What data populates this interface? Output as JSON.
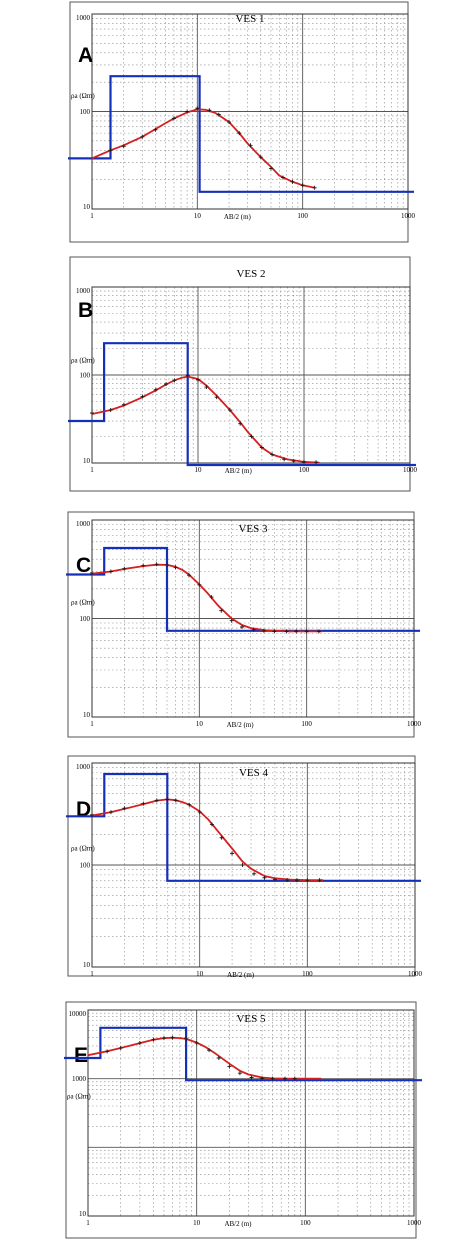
{
  "chart_data": [
    {
      "type": "line",
      "panel_label": "A",
      "title": "VES 1",
      "xlabel": "AB/2 (m)",
      "ylabel": "ρa (Ωm)",
      "x_scale": "log",
      "y_scale": "log",
      "xlim": [
        1,
        1000
      ],
      "ylim": [
        10,
        1000
      ],
      "x_tick_labels": [
        "1",
        "10",
        "100",
        "1000"
      ],
      "y_tick_labels": [
        "10",
        "100",
        "1000"
      ],
      "grid": true,
      "colors": {
        "field_data": "#1a1a1a",
        "model_curve": "#d42020",
        "layer_model": "#1530b8"
      },
      "series": [
        {
          "role": "field_data",
          "style": "markers",
          "x": [
            1.5,
            2,
            3,
            4,
            6,
            8,
            10,
            13,
            16,
            20,
            25,
            32,
            40,
            50,
            65,
            80,
            100,
            130
          ],
          "y": [
            40,
            44,
            55,
            65,
            85,
            100,
            108,
            103,
            93,
            78,
            60,
            45,
            34,
            26,
            21,
            19,
            17.5,
            16.5
          ]
        },
        {
          "role": "model_curve",
          "style": "line",
          "x": [
            1,
            1.5,
            2,
            3,
            4,
            5,
            6,
            8,
            10,
            12,
            15,
            20,
            25,
            30,
            40,
            50,
            60,
            80,
            100,
            130
          ],
          "y": [
            33,
            40,
            45,
            55,
            66,
            76,
            85,
            98,
            105,
            104,
            96,
            78,
            60,
            47,
            34,
            27,
            22,
            19,
            17.5,
            16.5
          ]
        },
        {
          "role": "layer_model",
          "style": "step",
          "x": [
            0.3,
            1.5,
            1.5,
            10.5,
            10.5,
            2000
          ],
          "y": [
            33,
            33,
            230,
            230,
            15,
            15
          ]
        }
      ]
    },
    {
      "type": "line",
      "panel_label": "B",
      "title": "VES 2",
      "xlabel": "AB/2 (m)",
      "ylabel": "ρa (Ωm)",
      "x_scale": "log",
      "y_scale": "log",
      "xlim": [
        1,
        1000
      ],
      "ylim": [
        10,
        1000
      ],
      "x_tick_labels": [
        "1",
        "10",
        "100",
        "1000"
      ],
      "y_tick_labels": [
        "10",
        "100",
        "1000"
      ],
      "grid": true,
      "colors": {
        "field_data": "#1a1a1a",
        "model_curve": "#d42020",
        "layer_model": "#1530b8"
      },
      "series": [
        {
          "role": "field_data",
          "style": "markers",
          "x": [
            1,
            1.5,
            2,
            3,
            4,
            5,
            6,
            8,
            10,
            12,
            15,
            20,
            25,
            32,
            40,
            50,
            65,
            80,
            100,
            130
          ],
          "y": [
            37,
            40,
            46,
            57,
            68,
            79,
            87,
            98,
            88,
            73,
            56,
            40,
            28,
            20,
            15,
            12.5,
            11,
            10.5,
            10.3,
            10.2
          ]
        },
        {
          "role": "model_curve",
          "style": "line",
          "x": [
            1,
            1.5,
            2,
            3,
            4,
            5,
            6,
            7,
            8,
            10,
            12,
            15,
            20,
            25,
            30,
            40,
            50,
            70,
            100,
            140
          ],
          "y": [
            36,
            40,
            45,
            56,
            67,
            78,
            87,
            93,
            96,
            90,
            76,
            58,
            40,
            29,
            22,
            15,
            12.5,
            11,
            10.3,
            10.1
          ]
        },
        {
          "role": "layer_model",
          "style": "step",
          "x": [
            0.3,
            1.3,
            1.3,
            8,
            8,
            2000
          ],
          "y": [
            30,
            30,
            230,
            230,
            9.5,
            9.5
          ]
        }
      ]
    },
    {
      "type": "line",
      "panel_label": "C",
      "title": "VES 3",
      "xlabel": "AB/2 (m)",
      "ylabel": "ρa (Ωm)",
      "x_scale": "log",
      "y_scale": "log",
      "xlim": [
        1,
        1000
      ],
      "ylim": [
        10,
        1000
      ],
      "x_tick_labels": [
        "1",
        "10",
        "100",
        "1000"
      ],
      "y_tick_labels": [
        "10",
        "100",
        "1000"
      ],
      "grid": true,
      "colors": {
        "field_data": "#1a1a1a",
        "model_curve": "#d42020",
        "layer_model": "#1530b8"
      },
      "series": [
        {
          "role": "field_data",
          "style": "markers",
          "x": [
            1,
            1.5,
            2,
            3,
            4,
            5,
            6,
            8,
            10,
            13,
            16,
            20,
            25,
            32,
            40,
            50,
            65,
            80,
            100,
            130
          ],
          "y": [
            290,
            300,
            320,
            345,
            355,
            350,
            330,
            275,
            220,
            165,
            120,
            95,
            82,
            77,
            75,
            74,
            74,
            74,
            74,
            74
          ]
        },
        {
          "role": "model_curve",
          "style": "line",
          "x": [
            1,
            1.5,
            2,
            3,
            4,
            5,
            6,
            7,
            8,
            10,
            12,
            15,
            20,
            25,
            30,
            40,
            50,
            70,
            100,
            140
          ],
          "y": [
            285,
            300,
            318,
            340,
            352,
            350,
            335,
            310,
            280,
            222,
            180,
            135,
            100,
            86,
            80,
            76,
            75,
            74,
            74,
            74
          ]
        },
        {
          "role": "layer_model",
          "style": "step",
          "x": [
            0.3,
            1.3,
            1.3,
            5,
            5,
            2000
          ],
          "y": [
            280,
            280,
            520,
            520,
            75,
            75
          ]
        }
      ]
    },
    {
      "type": "line",
      "panel_label": "D",
      "title": "VES 4",
      "xlabel": "AB/2 (m)",
      "ylabel": "ρa (Ωm)",
      "x_scale": "log",
      "y_scale": "log",
      "xlim": [
        1,
        1000
      ],
      "ylim": [
        10,
        1000
      ],
      "x_tick_labels": [
        "1",
        "10",
        "100",
        "1000"
      ],
      "y_tick_labels": [
        "10",
        "100",
        "1000"
      ],
      "grid": true,
      "colors": {
        "field_data": "#1a1a1a",
        "model_curve": "#d42020",
        "layer_model": "#1530b8"
      },
      "series": [
        {
          "role": "field_data",
          "style": "markers",
          "x": [
            1,
            1.5,
            2,
            3,
            4,
            5,
            6,
            8,
            10,
            13,
            16,
            20,
            25,
            32,
            40,
            50,
            65,
            80,
            100,
            130
          ],
          "y": [
            310,
            330,
            360,
            400,
            430,
            440,
            430,
            390,
            330,
            250,
            185,
            130,
            100,
            82,
            75,
            72,
            71,
            71,
            71,
            71
          ]
        },
        {
          "role": "model_curve",
          "style": "line",
          "x": [
            1,
            1.5,
            2,
            3,
            4,
            5,
            6,
            7,
            8,
            10,
            12,
            15,
            20,
            25,
            30,
            40,
            50,
            70,
            100,
            140
          ],
          "y": [
            305,
            330,
            355,
            395,
            428,
            440,
            432,
            412,
            390,
            335,
            280,
            210,
            145,
            108,
            92,
            78,
            74,
            72,
            71,
            71
          ]
        },
        {
          "role": "layer_model",
          "style": "step",
          "x": [
            0.3,
            1.3,
            1.3,
            5,
            5,
            2000
          ],
          "y": [
            300,
            300,
            780,
            780,
            70,
            70
          ]
        }
      ]
    },
    {
      "type": "line",
      "panel_label": "E",
      "title": "VES 5",
      "xlabel": "AB/2 (m)",
      "ylabel": "ρa (Ωm)",
      "x_scale": "log",
      "y_scale": "log",
      "xlim": [
        1,
        1000
      ],
      "ylim": [
        10,
        10000
      ],
      "x_tick_labels": [
        "1",
        "10",
        "100",
        "1000"
      ],
      "y_tick_labels": [
        "10",
        "1000",
        "10000"
      ],
      "grid": true,
      "colors": {
        "field_data": "#1a1a1a",
        "model_curve": "#d42020",
        "layer_model": "#1530b8"
      },
      "series": [
        {
          "role": "field_data",
          "style": "markers",
          "x": [
            1.5,
            2,
            3,
            4,
            5,
            6,
            8,
            10,
            13,
            16,
            20,
            25,
            32,
            40,
            50,
            65,
            80
          ],
          "y": [
            2500,
            2800,
            3300,
            3700,
            3900,
            3950,
            3800,
            3300,
            2600,
            2000,
            1500,
            1200,
            1040,
            1010,
            1000,
            1000,
            1000
          ]
        },
        {
          "role": "model_curve",
          "style": "line",
          "x": [
            1,
            1.5,
            2,
            3,
            4,
            5,
            6,
            7,
            8,
            10,
            12,
            15,
            20,
            25,
            30,
            40,
            50,
            70,
            100,
            140
          ],
          "y": [
            2200,
            2500,
            2800,
            3300,
            3700,
            3900,
            3950,
            3900,
            3800,
            3350,
            2900,
            2300,
            1650,
            1300,
            1150,
            1040,
            1010,
            1000,
            1000,
            1000
          ]
        },
        {
          "role": "layer_model",
          "style": "step",
          "x": [
            0.3,
            1.3,
            1.3,
            8,
            8,
            2000
          ],
          "y": [
            2000,
            2000,
            5500,
            5500,
            950,
            950
          ]
        }
      ]
    }
  ]
}
